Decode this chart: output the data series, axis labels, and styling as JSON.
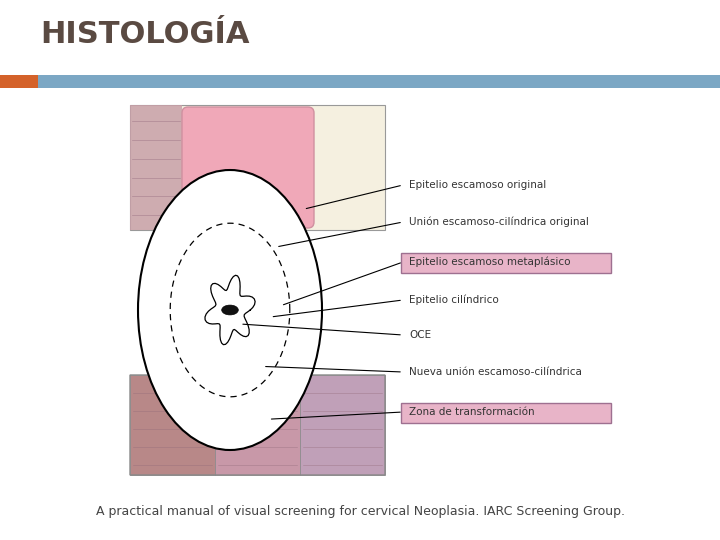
{
  "title": "HISTOLOGÍA",
  "title_color": "#5a4a42",
  "title_fontsize": 22,
  "subtitle": "A practical manual of visual screening for cervical Neoplasia. IARC Screening Group.",
  "subtitle_fontsize": 9,
  "subtitle_color": "#444444",
  "bg_color": "#ffffff",
  "header_bar_color": "#7ba7c4",
  "header_bar_orange": "#d4622a",
  "labels": [
    "Epitelio escamoso original",
    "Unión escamoso-cilíndrica original",
    "Epitelio escamoso metaplásico",
    "Epitelio cilíndrico",
    "OCE",
    "Nueva unión escamoso-cilíndrica",
    "Zona de transformación"
  ],
  "label_color": "#333333",
  "label_fontsize": 7.5,
  "highlight_indices": [
    2,
    6
  ],
  "highlight_bg": "#e8b4c8",
  "highlight_border": "#9e7090"
}
